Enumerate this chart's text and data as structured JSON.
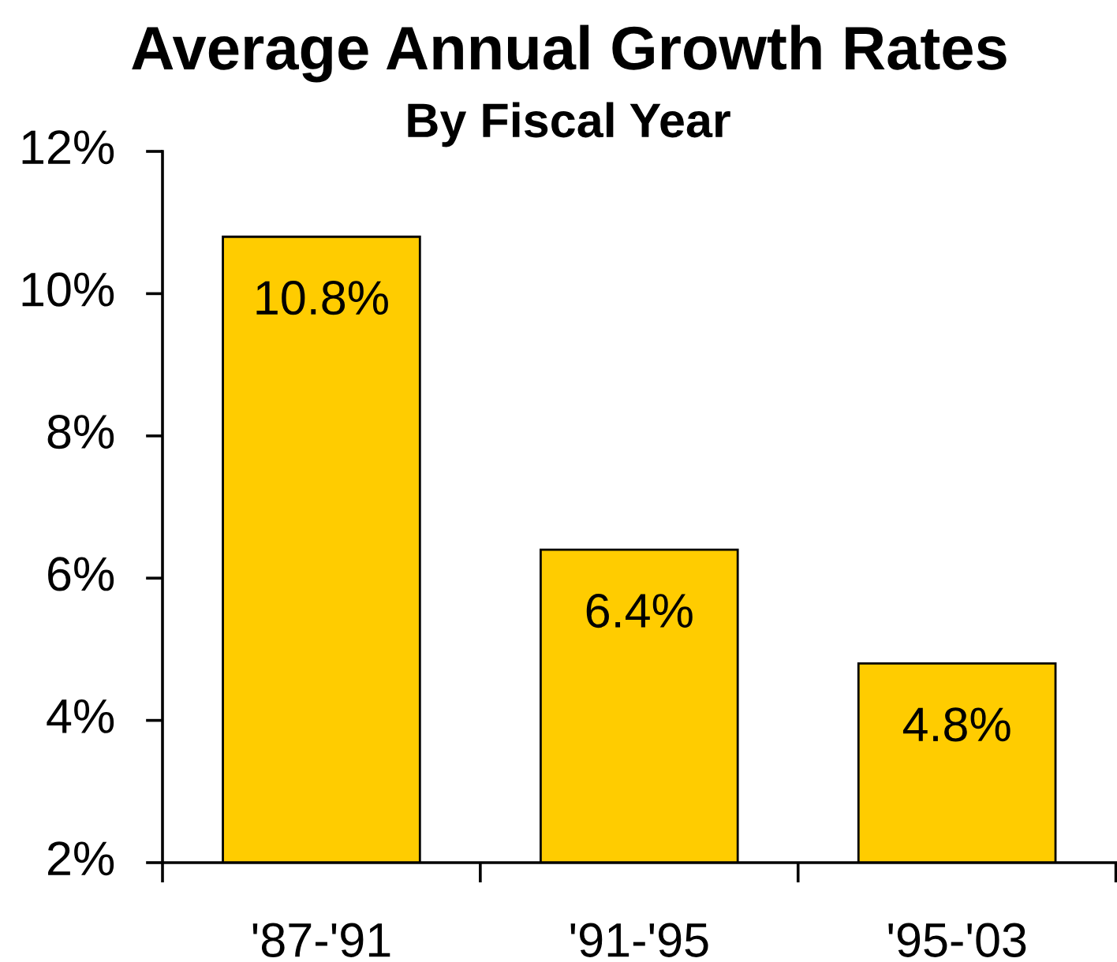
{
  "chart_data": {
    "type": "bar",
    "title": "Average Annual Growth Rates",
    "subtitle": "By Fiscal Year",
    "categories": [
      "'87-'91",
      "'91-'95",
      "'95-'03"
    ],
    "values": [
      10.8,
      6.4,
      4.8
    ],
    "color": "#ffcc00",
    "value_labels": [
      "10.8%",
      "6.4%",
      "4.8%"
    ],
    "ylim": [
      2,
      12
    ],
    "yticks": [
      {
        "value": 2,
        "label": "2%"
      },
      {
        "value": 4,
        "label": "4%"
      },
      {
        "value": 6,
        "label": "6%"
      },
      {
        "value": 8,
        "label": "8%"
      },
      {
        "value": 10,
        "label": "10%"
      },
      {
        "value": 12,
        "label": "12%"
      }
    ]
  }
}
